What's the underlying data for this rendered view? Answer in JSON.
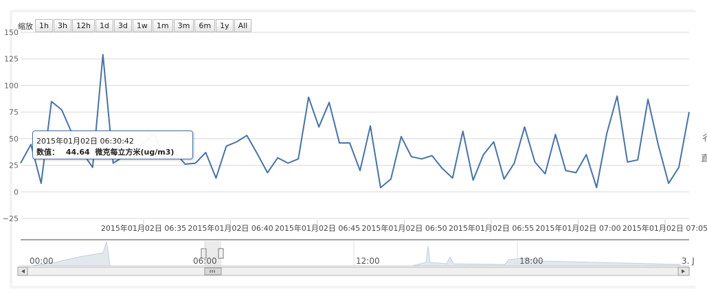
{
  "zoom": {
    "label": "缩放",
    "buttons": [
      "1h",
      "3h",
      "12h",
      "1d",
      "3d",
      "1w",
      "1m",
      "3m",
      "6m",
      "1y",
      "All"
    ]
  },
  "tooltip": {
    "time": "2015年01月02日 06:30:42",
    "label": "数值：",
    "value": "44.64",
    "unit": "微克每立方米(ug/m3)"
  },
  "navigator": {
    "labels": [
      "00:00",
      "06:00",
      "12:00",
      "18:00",
      "3. J"
    ]
  },
  "clipped_text": [
    "彳",
    "直"
  ],
  "chart_data": {
    "type": "line",
    "title": "",
    "xlabel": "",
    "ylabel": "",
    "ylim": [
      -25,
      150
    ],
    "yticks": [
      -25,
      0,
      25,
      50,
      75,
      100,
      125,
      150
    ],
    "xticks": [
      "2015年01月02日 06:35",
      "2015年01月02日 06:40",
      "2015年01月02日 06:45",
      "2015年01月02日 06:50",
      "2015年01月02日 06:55",
      "2015年01月02日 07:00",
      "2015年01月02日 07:05"
    ],
    "series": [
      {
        "color": "#4572A7",
        "values": [
          27,
          44.64,
          8,
          85,
          77,
          55,
          37,
          23,
          129,
          27,
          33,
          38,
          46,
          55,
          32,
          37,
          26,
          27,
          37,
          13,
          43,
          47,
          53,
          36,
          18,
          32,
          27,
          31,
          89,
          61,
          84,
          46,
          46,
          20,
          62,
          4,
          12,
          52,
          33,
          31,
          34,
          22,
          13,
          57,
          11,
          35,
          47,
          12,
          27,
          61,
          28,
          17,
          54,
          20,
          18,
          35,
          4,
          55,
          90,
          28,
          30,
          87,
          44,
          8,
          23,
          75
        ]
      }
    ],
    "grid": true,
    "legend": "none"
  }
}
